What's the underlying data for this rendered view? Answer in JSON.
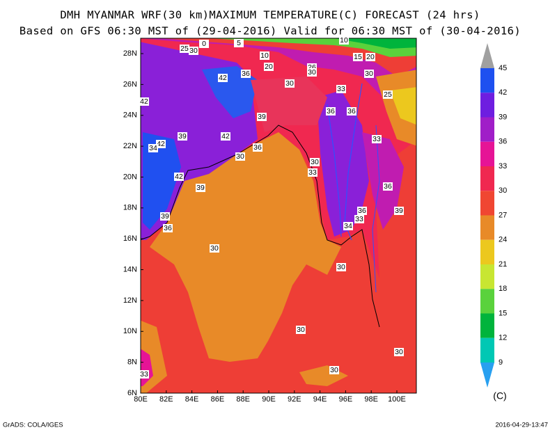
{
  "header": {
    "title": "DMH MYANMAR WRF(30 km)MAXIMUM TEMPERATURE(C) FORECAST (24 hrs)",
    "subtitle": "Based on GFS 06:30 MST of (29-04-2016) Valid for 06:30 MST of (30-04-2016)"
  },
  "map": {
    "lat_labels": [
      "6N",
      "8N",
      "10N",
      "12N",
      "14N",
      "16N",
      "18N",
      "20N",
      "22N",
      "24N",
      "26N",
      "28N"
    ],
    "lon_labels": [
      "80E",
      "82E",
      "84E",
      "86E",
      "88E",
      "90E",
      "92E",
      "94E",
      "96E",
      "98E",
      "100E"
    ],
    "contour_labels": [
      5,
      0,
      25,
      30,
      10,
      10,
      15,
      20,
      20,
      26,
      30,
      36,
      42,
      30,
      30,
      33,
      25,
      42,
      36,
      36,
      39,
      39,
      42,
      33,
      42,
      34,
      36,
      30,
      30,
      33,
      42,
      36,
      39,
      39,
      36,
      33,
      34,
      39,
      36,
      30,
      30,
      30,
      30,
      30,
      33
    ]
  },
  "colorbar": {
    "labels": [
      45,
      42,
      39,
      36,
      33,
      30,
      27,
      24,
      21,
      18,
      15,
      12,
      9
    ],
    "unit": "(C)",
    "colors": [
      "#a0a0a0",
      "#1e50f0",
      "#6e1ee0",
      "#a01ec8",
      "#e61496",
      "#f02850",
      "#f04632",
      "#e88a28",
      "#ecc81e",
      "#c8e632",
      "#5ad23c",
      "#00b43c",
      "#00c8b4",
      "#28a0f0"
    ]
  },
  "footer": {
    "left": "GrADS: COLA/IGES",
    "right": "2016-04-29-13:47"
  }
}
